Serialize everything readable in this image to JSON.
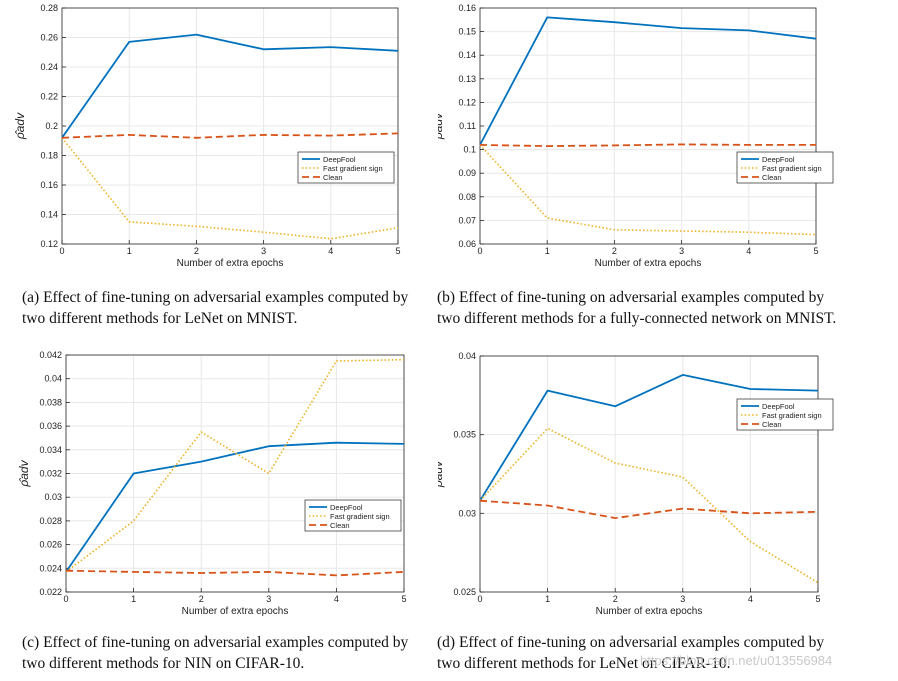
{
  "colors": {
    "deepfool": "#0072bd",
    "fgs": "#edb120",
    "clean": "#d95319",
    "grid": "#e8e8e8",
    "axis": "#262626"
  },
  "chart_data": [
    {
      "type": "line",
      "xlabel": "Number of extra epochs",
      "ylabel": "ρ̂adv",
      "x": [
        0,
        1,
        2,
        3,
        4,
        5
      ],
      "xlim": [
        0,
        5
      ],
      "ylim": [
        0.12,
        0.28
      ],
      "yticks": [
        "0.12",
        "0.14",
        "0.16",
        "0.18",
        "0.2",
        "0.22",
        "0.24",
        "0.26",
        "0.28"
      ],
      "xticks": [
        "0",
        "1",
        "2",
        "3",
        "4",
        "5"
      ],
      "legend": "right",
      "grid": true,
      "series": [
        {
          "name": "DeepFool",
          "style": "solid",
          "values": [
            0.192,
            0.257,
            0.262,
            0.252,
            0.2535,
            0.251
          ]
        },
        {
          "name": "Fast gradient sign",
          "style": "dotted",
          "values": [
            0.192,
            0.135,
            0.132,
            0.128,
            0.1235,
            0.131
          ]
        },
        {
          "name": "Clean",
          "style": "dashed",
          "values": [
            0.192,
            0.194,
            0.192,
            0.194,
            0.1935,
            0.195
          ]
        }
      ]
    },
    {
      "type": "line",
      "xlabel": "Number of extra epochs",
      "ylabel": "ρ̂adv",
      "x": [
        0,
        1,
        2,
        3,
        4,
        5
      ],
      "xlim": [
        0,
        5
      ],
      "ylim": [
        0.06,
        0.16
      ],
      "yticks": [
        "0.06",
        "0.07",
        "0.08",
        "0.09",
        "0.1",
        "0.11",
        "0.12",
        "0.13",
        "0.14",
        "0.15",
        "0.16"
      ],
      "xticks": [
        "0",
        "1",
        "2",
        "3",
        "4",
        "5"
      ],
      "legend": "right",
      "grid": true,
      "series": [
        {
          "name": "DeepFool",
          "style": "solid",
          "values": [
            0.102,
            0.156,
            0.154,
            0.1515,
            0.1505,
            0.147
          ]
        },
        {
          "name": "Fast gradient sign",
          "style": "dotted",
          "values": [
            0.102,
            0.071,
            0.066,
            0.0655,
            0.065,
            0.064
          ]
        },
        {
          "name": "Clean",
          "style": "dashed",
          "values": [
            0.102,
            0.1015,
            0.1018,
            0.1022,
            0.102,
            0.102
          ]
        }
      ]
    },
    {
      "type": "line",
      "xlabel": "Number of extra epochs",
      "ylabel": "ρ̂adv",
      "x": [
        0,
        1,
        2,
        3,
        4,
        5
      ],
      "xlim": [
        0,
        5
      ],
      "ylim": [
        0.022,
        0.042
      ],
      "yticks": [
        "0.022",
        "0.024",
        "0.026",
        "0.028",
        "0.03",
        "0.032",
        "0.034",
        "0.036",
        "0.038",
        "0.04",
        "0.042"
      ],
      "xticks": [
        "0",
        "1",
        "2",
        "3",
        "4",
        "5"
      ],
      "legend": "bottom-right",
      "grid": true,
      "series": [
        {
          "name": "DeepFool",
          "style": "solid",
          "values": [
            0.0237,
            0.032,
            0.033,
            0.0343,
            0.0346,
            0.0345
          ]
        },
        {
          "name": "Fast gradient sign",
          "style": "dotted",
          "values": [
            0.0237,
            0.028,
            0.0355,
            0.032,
            0.0415,
            0.0416
          ]
        },
        {
          "name": "Clean",
          "style": "dashed",
          "values": [
            0.0238,
            0.0237,
            0.0236,
            0.0237,
            0.0234,
            0.0237
          ]
        }
      ]
    },
    {
      "type": "line",
      "xlabel": "Number of extra epochs",
      "ylabel": "ρ̂adv",
      "x": [
        0,
        1,
        2,
        3,
        4,
        5
      ],
      "xlim": [
        0,
        5
      ],
      "ylim": [
        0.025,
        0.04
      ],
      "yticks": [
        "0.025",
        "0.03",
        "0.035",
        "0.04"
      ],
      "xticks": [
        "0",
        "1",
        "2",
        "3",
        "4",
        "5"
      ],
      "legend": "right",
      "grid": true,
      "series": [
        {
          "name": "DeepFool",
          "style": "solid",
          "values": [
            0.0308,
            0.0378,
            0.0368,
            0.0388,
            0.0379,
            0.0378
          ]
        },
        {
          "name": "Fast gradient sign",
          "style": "dotted",
          "values": [
            0.0308,
            0.0354,
            0.0332,
            0.0323,
            0.0282,
            0.0256
          ]
        },
        {
          "name": "Clean",
          "style": "dashed",
          "values": [
            0.0308,
            0.0305,
            0.0297,
            0.0303,
            0.03,
            0.0301
          ]
        }
      ]
    }
  ],
  "captions": [
    "(a) Effect of fine-tuning on adversarial examples computed by two different methods for LeNet on MNIST.",
    "(b) Effect of fine-tuning on adversarial examples computed by two different methods for a fully-connected network on MNIST.",
    "(c) Effect of fine-tuning on adversarial examples computed by two different methods for NIN on CIFAR-10.",
    "(d) Effect of fine-tuning on adversarial examples computed by two different methods for LeNet on CIFAR-10."
  ],
  "watermark": "https://blog.csdn.net/u013556984"
}
